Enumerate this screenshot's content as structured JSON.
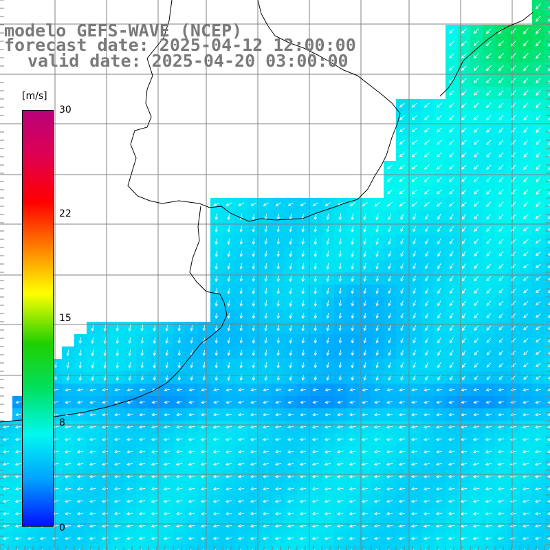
{
  "title": {
    "line1": "modelo GEFS-WAVE (NCEP)",
    "line2": "forecast date: 2025-04-12 12:00:00",
    "line3": "valid date: 2025-04-20 03:00:00"
  },
  "colorbar": {
    "unit": "[m/s]",
    "min": 0,
    "max": 30,
    "ticks": [
      "30",
      "22",
      "15",
      "8",
      "0"
    ],
    "colors": [
      "#0010ff",
      "#00a0ff",
      "#00f8f0",
      "#00e060",
      "#20d000",
      "#ffff00",
      "#ff8000",
      "#ff0000",
      "#e00050",
      "#b8007a"
    ]
  },
  "colors": {
    "land": "#ffffff",
    "grid": "#808080",
    "coast": "#000000",
    "arrow": "#ffffff",
    "title": "#7a7a7a"
  }
}
